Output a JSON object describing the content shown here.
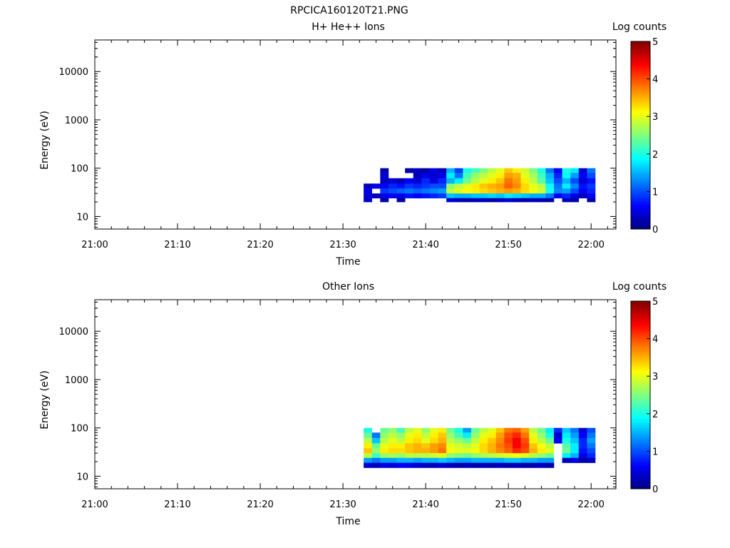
{
  "figure_title": "RPCICA160120T21.PNG",
  "colormap": [
    "#00007f",
    "#0000ff",
    "#007fff",
    "#00ffff",
    "#7fff7f",
    "#ffff00",
    "#ff7f00",
    "#ff0000",
    "#7f0000"
  ],
  "chart_data": [
    {
      "type": "heatmap",
      "title": "H+ He++ Ions",
      "xlabel": "Time",
      "ylabel": "Energy (eV)",
      "x_ticks": [
        "21:00",
        "21:10",
        "21:20",
        "21:30",
        "21:40",
        "21:50",
        "22:00"
      ],
      "y_ticks": [
        "10",
        "100",
        "1000",
        "10000"
      ],
      "y_scale": "log",
      "xlim_minutes": [
        0,
        63
      ],
      "ylim": [
        5.5,
        45000
      ],
      "colorbar": {
        "label": "Log counts",
        "range": [
          0,
          5
        ],
        "ticks": [
          "0",
          "1",
          "2",
          "3",
          "4",
          "5"
        ]
      },
      "energy_bins": [
        [
          80,
          100
        ],
        [
          62,
          80
        ],
        [
          48,
          62
        ],
        [
          38,
          48
        ],
        [
          30,
          38
        ],
        [
          24,
          30
        ],
        [
          20,
          24
        ]
      ],
      "start_minute": 32.5,
      "bin_minutes": 1,
      "counts": [
        [
          null,
          null,
          0.2,
          null,
          null,
          0.2,
          0.3,
          0.2,
          0.5,
          0.3,
          1.5,
          0.9,
          2.0,
          2.2,
          2.5,
          2.8,
          3.0,
          3.4,
          3.2,
          2.9,
          2.5,
          2.0,
          1.2,
          0.6,
          2.0,
          1.8,
          0.4,
          1.2
        ],
        [
          null,
          null,
          0.4,
          null,
          null,
          null,
          0.3,
          0.5,
          0.4,
          0.5,
          1.8,
          1.2,
          2.2,
          2.6,
          2.8,
          3.0,
          3.2,
          3.6,
          3.5,
          3.0,
          2.7,
          2.2,
          1.5,
          0.8,
          1.9,
          1.4,
          0.6,
          1.0
        ],
        [
          null,
          null,
          0.3,
          0.4,
          0.3,
          0.6,
          0.4,
          0.8,
          0.5,
          0.8,
          1.5,
          1.8,
          2.4,
          2.8,
          3.0,
          3.2,
          3.4,
          3.8,
          3.6,
          3.2,
          2.8,
          2.3,
          1.6,
          1.0,
          1.5,
          1.0,
          0.4,
          0.7
        ],
        [
          0.3,
          0.5,
          0.6,
          0.8,
          0.7,
          0.9,
          0.8,
          0.9,
          1.0,
          1.0,
          2.6,
          2.8,
          3.0,
          3.2,
          3.4,
          3.5,
          3.6,
          3.9,
          3.7,
          3.3,
          3.0,
          2.8,
          1.9,
          1.2,
          1.8,
          1.3,
          0.7,
          0.9
        ],
        [
          0.5,
          null,
          0.9,
          1.0,
          1.1,
          1.2,
          1.1,
          1.2,
          1.3,
          1.4,
          2.8,
          3.0,
          3.1,
          3.2,
          3.3,
          3.4,
          3.5,
          3.6,
          3.5,
          3.3,
          3.1,
          2.9,
          2.0,
          1.3,
          1.4,
          1.0,
          0.6,
          0.8
        ],
        [
          0.4,
          0.3,
          0.5,
          0.6,
          0.5,
          0.7,
          0.6,
          0.7,
          0.8,
          0.9,
          1.6,
          1.5,
          1.5,
          1.6,
          1.6,
          1.7,
          1.6,
          1.8,
          1.7,
          1.6,
          1.5,
          1.5,
          1.2,
          0.6,
          0.8,
          0.5,
          0.3,
          0.6
        ],
        [
          0.4,
          null,
          0.2,
          null,
          0.2,
          null,
          null,
          null,
          null,
          null,
          0.4,
          0.3,
          0.2,
          0.3,
          0.3,
          0.2,
          0.3,
          0.4,
          0.3,
          0.2,
          0.3,
          0.3,
          0.2,
          null,
          0.3,
          0.2,
          null,
          0.2
        ]
      ]
    },
    {
      "type": "heatmap",
      "title": "Other Ions",
      "xlabel": "Time",
      "ylabel": "Energy (eV)",
      "x_ticks": [
        "21:00",
        "21:10",
        "21:20",
        "21:30",
        "21:40",
        "21:50",
        "22:00"
      ],
      "y_ticks": [
        "10",
        "100",
        "1000",
        "10000"
      ],
      "y_scale": "log",
      "xlim_minutes": [
        0,
        63
      ],
      "ylim": [
        5.5,
        45000
      ],
      "colorbar": {
        "label": "Log counts",
        "range": [
          0,
          5
        ],
        "ticks": [
          "0",
          "1",
          "2",
          "3",
          "4",
          "5"
        ]
      },
      "energy_bins": [
        [
          80,
          100
        ],
        [
          62,
          80
        ],
        [
          48,
          62
        ],
        [
          38,
          48
        ],
        [
          30,
          38
        ],
        [
          24,
          30
        ],
        [
          19,
          24
        ],
        [
          15,
          19
        ]
      ],
      "start_minute": 32.5,
      "bin_minutes": 1,
      "counts": [
        [
          2.0,
          null,
          2.4,
          2.6,
          2.2,
          2.8,
          3.0,
          2.6,
          3.0,
          3.2,
          2.4,
          2.0,
          1.4,
          2.4,
          2.8,
          3.0,
          3.4,
          3.8,
          3.9,
          3.6,
          2.8,
          2.4,
          1.8,
          0.8,
          1.6,
          1.2,
          0.4,
          1.0
        ],
        [
          2.4,
          1.2,
          2.6,
          2.8,
          2.6,
          3.0,
          3.2,
          2.8,
          3.2,
          3.4,
          2.6,
          2.2,
          1.8,
          2.6,
          3.0,
          3.2,
          3.6,
          4.0,
          4.2,
          3.8,
          3.0,
          2.6,
          2.0,
          0.4,
          1.8,
          1.4,
          0.6,
          1.2
        ],
        [
          2.8,
          1.6,
          2.8,
          3.0,
          2.8,
          3.2,
          3.3,
          3.0,
          3.3,
          3.5,
          2.8,
          2.6,
          2.4,
          2.8,
          3.2,
          3.4,
          3.7,
          4.1,
          4.4,
          4.0,
          3.2,
          2.8,
          2.4,
          0.6,
          2.0,
          1.6,
          0.8,
          1.4
        ],
        [
          3.2,
          2.4,
          3.0,
          3.2,
          3.2,
          3.4,
          3.5,
          3.4,
          3.6,
          3.7,
          3.0,
          2.9,
          2.8,
          3.0,
          3.3,
          3.5,
          3.8,
          4.0,
          4.4,
          4.1,
          3.4,
          3.1,
          2.8,
          null,
          2.3,
          1.8,
          0.8,
          1.2
        ],
        [
          3.4,
          2.6,
          3.2,
          3.3,
          3.3,
          3.4,
          3.5,
          3.5,
          3.6,
          3.8,
          3.1,
          3.0,
          3.0,
          3.1,
          3.3,
          3.5,
          3.7,
          3.9,
          4.2,
          4.0,
          3.5,
          3.2,
          3.0,
          null,
          2.4,
          1.8,
          0.7,
          1.0
        ],
        [
          2.8,
          2.2,
          2.6,
          2.7,
          2.6,
          2.8,
          2.8,
          2.8,
          2.9,
          3.0,
          2.6,
          2.5,
          2.4,
          2.6,
          2.7,
          2.8,
          2.9,
          3.0,
          3.1,
          3.0,
          2.8,
          2.6,
          2.4,
          null,
          1.8,
          1.5,
          0.5,
          0.8
        ],
        [
          1.4,
          1.2,
          1.4,
          1.4,
          1.5,
          1.5,
          1.4,
          1.5,
          1.5,
          1.6,
          1.5,
          1.4,
          1.4,
          1.5,
          1.5,
          1.5,
          1.5,
          1.6,
          1.6,
          1.5,
          1.5,
          1.4,
          1.4,
          null,
          0.3,
          0.5,
          0.2,
          0.3
        ],
        [
          0.4,
          0.3,
          0.5,
          0.4,
          0.6,
          0.5,
          0.4,
          0.3,
          0.3,
          0.4,
          0.3,
          0.2,
          0.3,
          0.2,
          0.3,
          0.2,
          0.3,
          0.2,
          0.3,
          0.2,
          0.2,
          0.3,
          0.2,
          null,
          null,
          null,
          null,
          null
        ]
      ]
    }
  ]
}
